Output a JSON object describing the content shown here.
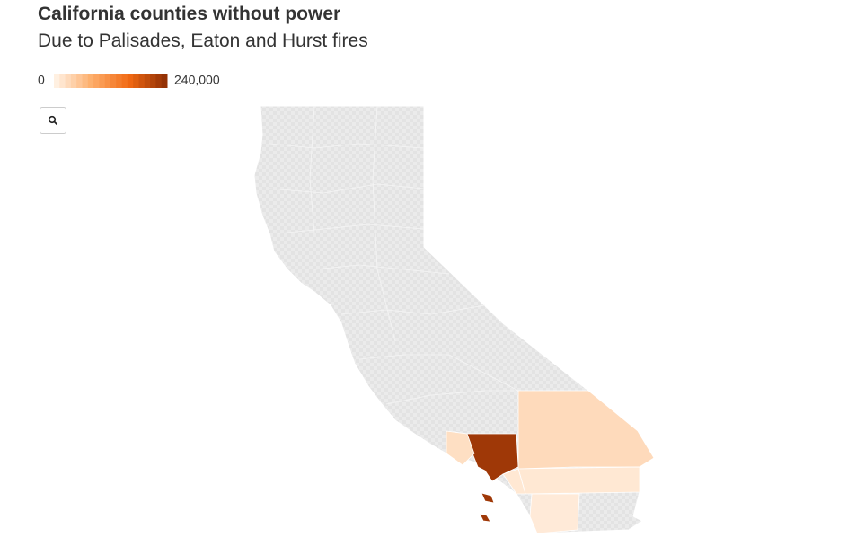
{
  "chart_data": {
    "type": "choropleth",
    "title": "California counties without power",
    "subtitle": "Due to Palisades, Eaton and Hurst fires",
    "legend": {
      "ticks": [
        0,
        {
          "value": 240000,
          "label": "240,000"
        }
      ],
      "color_stops": [
        "#fff5eb",
        "#fdae6b",
        "#f16913",
        "#8c2d04"
      ]
    },
    "values": [
      225000,
      30000,
      15000,
      12000,
      25000,
      15000
    ],
    "no_data_color": "#e3e3e3"
  }
}
